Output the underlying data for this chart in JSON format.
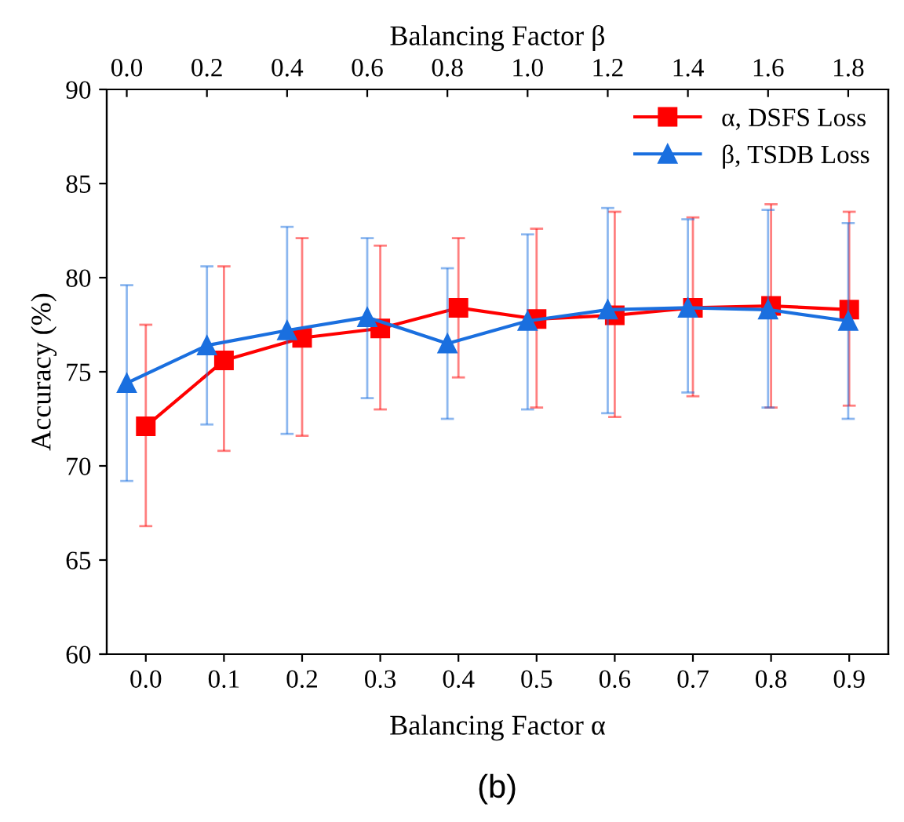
{
  "chart_data": {
    "type": "line",
    "xlabel": "Balancing Factor α",
    "x2label": "Balancing Factor β",
    "ylabel": "Accuracy (%)",
    "annotations": [
      "(b)"
    ],
    "xlim": [
      -0.05,
      0.95
    ],
    "xticks": [
      {
        "value": 0.0,
        "label": "0.0"
      },
      0.1,
      0.2,
      0.3,
      0.4,
      0.5,
      0.6,
      0.7,
      0.8,
      0.9
    ],
    "x2lim": [
      -0.05,
      1.9
    ],
    "x2ticks": [
      {
        "value": 0.0,
        "label": "0.0"
      },
      0.2,
      0.4,
      0.6,
      0.8,
      {
        "value": 1.0,
        "label": "1.0"
      },
      1.2,
      1.4,
      1.6,
      1.8
    ],
    "ylim": [
      60,
      90
    ],
    "yticks": [
      60,
      65,
      70,
      75,
      80,
      85,
      90
    ],
    "legend": "top right",
    "line_style": "solid",
    "grid": false,
    "series": [
      {
        "name": "α, DSFS Loss",
        "color": "#ff0000",
        "marker": "square",
        "x": [
          0.0,
          0.1,
          0.2,
          0.3,
          0.4,
          0.5,
          0.6,
          0.7,
          0.8,
          0.9
        ],
        "values": [
          72.1,
          75.6,
          76.8,
          77.3,
          78.4,
          77.8,
          78.0,
          78.4,
          78.5,
          78.3
        ],
        "errors": [
          [
            66.8,
            77.5
          ],
          [
            70.8,
            80.6
          ],
          [
            71.6,
            82.1
          ],
          [
            73.0,
            81.7
          ],
          [
            74.7,
            82.1
          ],
          [
            73.1,
            82.6
          ],
          [
            72.6,
            83.5
          ],
          [
            73.7,
            83.2
          ],
          [
            73.1,
            83.9
          ],
          [
            73.2,
            83.5
          ]
        ]
      },
      {
        "name": "β, TSDB Loss",
        "color": "#1a6fdf",
        "marker": "triangle",
        "axis": "x2",
        "x": [
          0.0,
          0.2,
          0.4,
          0.6,
          0.8,
          1.0,
          1.2,
          1.4,
          1.6,
          1.8
        ],
        "values": [
          74.4,
          76.4,
          77.2,
          77.9,
          76.5,
          77.7,
          78.3,
          78.4,
          78.3,
          77.7
        ],
        "errors": [
          [
            69.2,
            79.6
          ],
          [
            72.2,
            80.6
          ],
          [
            71.7,
            82.7
          ],
          [
            73.6,
            82.1
          ],
          [
            72.5,
            80.5
          ],
          [
            73.0,
            82.3
          ],
          [
            72.8,
            83.7
          ],
          [
            73.9,
            83.1
          ],
          [
            73.1,
            83.6
          ],
          [
            72.5,
            82.9
          ]
        ]
      }
    ]
  }
}
